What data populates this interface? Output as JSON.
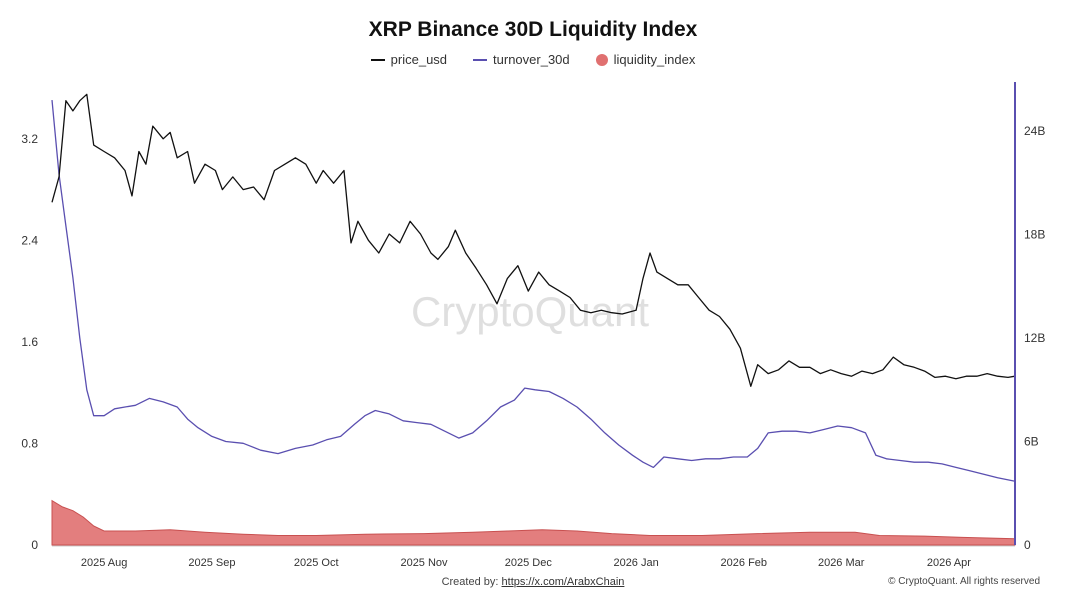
{
  "chart_data": {
    "type": "line",
    "title": "XRP Binance 30D Liquidity Index",
    "legend_placement": "top-center",
    "grid": false,
    "watermark": "CryptoQuant",
    "x_ticks": [
      "2025 Aug",
      "2025 Sep",
      "2025 Oct",
      "2025 Nov",
      "2025 Dec",
      "2026 Jan",
      "2026 Feb",
      "2026 Mar",
      "2026 Apr"
    ],
    "x_range": [
      "2025-07-17",
      "2026-04-20"
    ],
    "y_left": {
      "ticks": [
        "0",
        "0.8",
        "1.6",
        "2.4",
        "3.2"
      ],
      "range": [
        0,
        3.6
      ]
    },
    "y_right": {
      "ticks": [
        "0",
        "6B",
        "12B",
        "18B",
        "24B"
      ],
      "range": [
        0,
        26500000000
      ]
    },
    "series": [
      {
        "name": "price_usd",
        "axis": "left",
        "color": "#111111",
        "points": [
          [
            "2025-07-17",
            2.7
          ],
          [
            "2025-07-19",
            2.9
          ],
          [
            "2025-07-21",
            3.5
          ],
          [
            "2025-07-23",
            3.42
          ],
          [
            "2025-07-25",
            3.5
          ],
          [
            "2025-07-27",
            3.55
          ],
          [
            "2025-07-29",
            3.15
          ],
          [
            "2025-08-01",
            3.1
          ],
          [
            "2025-08-04",
            3.05
          ],
          [
            "2025-08-07",
            2.95
          ],
          [
            "2025-08-09",
            2.75
          ],
          [
            "2025-08-11",
            3.1
          ],
          [
            "2025-08-13",
            3.0
          ],
          [
            "2025-08-15",
            3.3
          ],
          [
            "2025-08-18",
            3.2
          ],
          [
            "2025-08-20",
            3.25
          ],
          [
            "2025-08-22",
            3.05
          ],
          [
            "2025-08-25",
            3.1
          ],
          [
            "2025-08-27",
            2.85
          ],
          [
            "2025-08-30",
            3.0
          ],
          [
            "2025-09-02",
            2.95
          ],
          [
            "2025-09-04",
            2.8
          ],
          [
            "2025-09-07",
            2.9
          ],
          [
            "2025-09-10",
            2.8
          ],
          [
            "2025-09-13",
            2.82
          ],
          [
            "2025-09-16",
            2.72
          ],
          [
            "2025-09-19",
            2.95
          ],
          [
            "2025-09-22",
            3.0
          ],
          [
            "2025-09-25",
            3.05
          ],
          [
            "2025-09-28",
            3.0
          ],
          [
            "2025-10-01",
            2.85
          ],
          [
            "2025-10-03",
            2.95
          ],
          [
            "2025-10-06",
            2.85
          ],
          [
            "2025-10-09",
            2.95
          ],
          [
            "2025-10-11",
            2.38
          ],
          [
            "2025-10-13",
            2.55
          ],
          [
            "2025-10-16",
            2.4
          ],
          [
            "2025-10-19",
            2.3
          ],
          [
            "2025-10-22",
            2.45
          ],
          [
            "2025-10-25",
            2.38
          ],
          [
            "2025-10-28",
            2.55
          ],
          [
            "2025-10-31",
            2.45
          ],
          [
            "2025-11-03",
            2.3
          ],
          [
            "2025-11-05",
            2.25
          ],
          [
            "2025-11-08",
            2.35
          ],
          [
            "2025-11-10",
            2.48
          ],
          [
            "2025-11-13",
            2.3
          ],
          [
            "2025-11-16",
            2.18
          ],
          [
            "2025-11-19",
            2.05
          ],
          [
            "2025-11-22",
            1.9
          ],
          [
            "2025-11-25",
            2.1
          ],
          [
            "2025-11-28",
            2.2
          ],
          [
            "2025-12-01",
            2.0
          ],
          [
            "2025-12-04",
            2.15
          ],
          [
            "2025-12-07",
            2.05
          ],
          [
            "2025-12-10",
            2.0
          ],
          [
            "2025-12-13",
            1.95
          ],
          [
            "2025-12-16",
            1.85
          ],
          [
            "2025-12-19",
            1.83
          ],
          [
            "2025-12-22",
            1.85
          ],
          [
            "2025-12-25",
            1.83
          ],
          [
            "2025-12-28",
            1.82
          ],
          [
            "2026-01-01",
            1.85
          ],
          [
            "2026-01-03",
            2.1
          ],
          [
            "2026-01-05",
            2.3
          ],
          [
            "2026-01-07",
            2.15
          ],
          [
            "2026-01-10",
            2.1
          ],
          [
            "2026-01-13",
            2.05
          ],
          [
            "2026-01-16",
            2.05
          ],
          [
            "2026-01-19",
            1.95
          ],
          [
            "2026-01-22",
            1.85
          ],
          [
            "2026-01-25",
            1.8
          ],
          [
            "2026-01-28",
            1.7
          ],
          [
            "2026-01-31",
            1.55
          ],
          [
            "2026-02-03",
            1.25
          ],
          [
            "2026-02-05",
            1.42
          ],
          [
            "2026-02-08",
            1.35
          ],
          [
            "2026-02-11",
            1.38
          ],
          [
            "2026-02-14",
            1.45
          ],
          [
            "2026-02-17",
            1.4
          ],
          [
            "2026-02-20",
            1.4
          ],
          [
            "2026-02-23",
            1.35
          ],
          [
            "2026-02-26",
            1.38
          ],
          [
            "2026-03-01",
            1.35
          ],
          [
            "2026-03-04",
            1.33
          ],
          [
            "2026-03-07",
            1.37
          ],
          [
            "2026-03-10",
            1.35
          ],
          [
            "2026-03-13",
            1.38
          ],
          [
            "2026-03-16",
            1.48
          ],
          [
            "2026-03-19",
            1.42
          ],
          [
            "2026-03-22",
            1.4
          ],
          [
            "2026-03-25",
            1.37
          ],
          [
            "2026-03-28",
            1.32
          ],
          [
            "2026-03-31",
            1.33
          ],
          [
            "2026-04-03",
            1.31
          ],
          [
            "2026-04-06",
            1.33
          ],
          [
            "2026-04-09",
            1.33
          ],
          [
            "2026-04-12",
            1.35
          ],
          [
            "2026-04-15",
            1.33
          ],
          [
            "2026-04-18",
            1.32
          ],
          [
            "2026-04-20",
            1.33
          ]
        ]
      },
      {
        "name": "turnover_30d",
        "axis": "right",
        "color": "#5a4fb0",
        "points": [
          [
            "2025-07-17",
            25800000000.0
          ],
          [
            "2025-07-19",
            21500000000.0
          ],
          [
            "2025-07-21",
            18500000000.0
          ],
          [
            "2025-07-23",
            15500000000.0
          ],
          [
            "2025-07-25",
            12000000000.0
          ],
          [
            "2025-07-27",
            9000000000.0
          ],
          [
            "2025-07-29",
            7500000000.0
          ],
          [
            "2025-08-01",
            7500000000.0
          ],
          [
            "2025-08-04",
            7900000000.0
          ],
          [
            "2025-08-07",
            8000000000.0
          ],
          [
            "2025-08-10",
            8100000000.0
          ],
          [
            "2025-08-14",
            8500000000.0
          ],
          [
            "2025-08-18",
            8300000000.0
          ],
          [
            "2025-08-22",
            8000000000.0
          ],
          [
            "2025-08-25",
            7300000000.0
          ],
          [
            "2025-08-28",
            6800000000.0
          ],
          [
            "2025-09-01",
            6300000000.0
          ],
          [
            "2025-09-05",
            6000000000.0
          ],
          [
            "2025-09-10",
            5900000000.0
          ],
          [
            "2025-09-15",
            5500000000.0
          ],
          [
            "2025-09-20",
            5300000000.0
          ],
          [
            "2025-09-25",
            5600000000.0
          ],
          [
            "2025-09-30",
            5800000000.0
          ],
          [
            "2025-10-04",
            6100000000.0
          ],
          [
            "2025-10-08",
            6300000000.0
          ],
          [
            "2025-10-12",
            7000000000.0
          ],
          [
            "2025-10-15",
            7500000000.0
          ],
          [
            "2025-10-18",
            7800000000.0
          ],
          [
            "2025-10-22",
            7600000000.0
          ],
          [
            "2025-10-26",
            7200000000.0
          ],
          [
            "2025-10-30",
            7100000000.0
          ],
          [
            "2025-11-03",
            7000000000.0
          ],
          [
            "2025-11-07",
            6600000000.0
          ],
          [
            "2025-11-11",
            6200000000.0
          ],
          [
            "2025-11-15",
            6500000000.0
          ],
          [
            "2025-11-19",
            7200000000.0
          ],
          [
            "2025-11-23",
            8000000000.0
          ],
          [
            "2025-11-27",
            8400000000.0
          ],
          [
            "2025-11-30",
            9100000000.0
          ],
          [
            "2025-12-03",
            9000000000.0
          ],
          [
            "2025-12-07",
            8900000000.0
          ],
          [
            "2025-12-11",
            8500000000.0
          ],
          [
            "2025-12-15",
            8000000000.0
          ],
          [
            "2025-12-19",
            7300000000.0
          ],
          [
            "2025-12-23",
            6500000000.0
          ],
          [
            "2025-12-27",
            5800000000.0
          ],
          [
            "2025-12-31",
            5200000000.0
          ],
          [
            "2026-01-03",
            4800000000.0
          ],
          [
            "2026-01-06",
            4500000000.0
          ],
          [
            "2026-01-09",
            5100000000.0
          ],
          [
            "2026-01-13",
            5000000000.0
          ],
          [
            "2026-01-17",
            4900000000.0
          ],
          [
            "2026-01-21",
            5000000000.0
          ],
          [
            "2026-01-25",
            5000000000.0
          ],
          [
            "2026-01-29",
            5100000000.0
          ],
          [
            "2026-02-02",
            5100000000.0
          ],
          [
            "2026-02-05",
            5600000000.0
          ],
          [
            "2026-02-08",
            6500000000.0
          ],
          [
            "2026-02-12",
            6600000000.0
          ],
          [
            "2026-02-16",
            6600000000.0
          ],
          [
            "2026-02-20",
            6500000000.0
          ],
          [
            "2026-02-24",
            6700000000.0
          ],
          [
            "2026-02-28",
            6900000000.0
          ],
          [
            "2026-03-04",
            6800000000.0
          ],
          [
            "2026-03-08",
            6500000000.0
          ],
          [
            "2026-03-11",
            5200000000.0
          ],
          [
            "2026-03-14",
            5000000000.0
          ],
          [
            "2026-03-18",
            4900000000.0
          ],
          [
            "2026-03-22",
            4800000000.0
          ],
          [
            "2026-03-26",
            4800000000.0
          ],
          [
            "2026-03-30",
            4700000000.0
          ],
          [
            "2026-04-03",
            4500000000.0
          ],
          [
            "2026-04-07",
            4300000000.0
          ],
          [
            "2026-04-11",
            4100000000.0
          ],
          [
            "2026-04-15",
            3900000000.0
          ],
          [
            "2026-04-20",
            3700000000.0
          ]
        ]
      },
      {
        "name": "liquidity_index",
        "axis": "left",
        "type": "area",
        "color": "#e07070",
        "points": [
          [
            "2025-07-17",
            0.35
          ],
          [
            "2025-07-20",
            0.3
          ],
          [
            "2025-07-23",
            0.27
          ],
          [
            "2025-07-26",
            0.22
          ],
          [
            "2025-07-29",
            0.15
          ],
          [
            "2025-08-01",
            0.11
          ],
          [
            "2025-08-10",
            0.11
          ],
          [
            "2025-08-20",
            0.12
          ],
          [
            "2025-08-30",
            0.1
          ],
          [
            "2025-09-10",
            0.085
          ],
          [
            "2025-09-20",
            0.075
          ],
          [
            "2025-10-01",
            0.075
          ],
          [
            "2025-10-15",
            0.085
          ],
          [
            "2025-11-01",
            0.09
          ],
          [
            "2025-11-15",
            0.1
          ],
          [
            "2025-11-25",
            0.11
          ],
          [
            "2025-12-05",
            0.12
          ],
          [
            "2025-12-15",
            0.11
          ],
          [
            "2025-12-25",
            0.09
          ],
          [
            "2026-01-05",
            0.075
          ],
          [
            "2026-01-20",
            0.075
          ],
          [
            "2026-02-05",
            0.09
          ],
          [
            "2026-02-20",
            0.1
          ],
          [
            "2026-03-05",
            0.1
          ],
          [
            "2026-03-12",
            0.075
          ],
          [
            "2026-03-25",
            0.07
          ],
          [
            "2026-04-05",
            0.06
          ],
          [
            "2026-04-20",
            0.05
          ]
        ]
      }
    ]
  },
  "footer": {
    "created_by_label": "Created by:",
    "created_by_link": "https://x.com/ArabxChain",
    "copyright": "© CryptoQuant. All rights reserved"
  }
}
